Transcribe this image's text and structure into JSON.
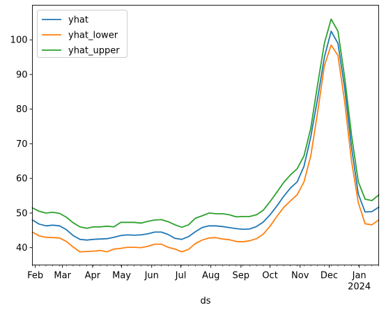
{
  "chart_data": {
    "type": "line",
    "title": "",
    "xlabel": "ds",
    "ylabel": "",
    "xlim": [
      "2023-01-29",
      "2024-01-21"
    ],
    "ylim": [
      35,
      110
    ],
    "grid": false,
    "legend_position": "top-left",
    "x_ticks": [
      {
        "date": "2023-02-01",
        "label": "Feb"
      },
      {
        "date": "2023-03-01",
        "label": "Mar"
      },
      {
        "date": "2023-04-01",
        "label": "Apr"
      },
      {
        "date": "2023-05-01",
        "label": "May"
      },
      {
        "date": "2023-06-01",
        "label": "Jun"
      },
      {
        "date": "2023-07-01",
        "label": "Jul"
      },
      {
        "date": "2023-08-01",
        "label": "Aug"
      },
      {
        "date": "2023-09-01",
        "label": "Sep"
      },
      {
        "date": "2023-10-01",
        "label": "Oct"
      },
      {
        "date": "2023-11-01",
        "label": "Nov"
      },
      {
        "date": "2023-12-01",
        "label": "Dec"
      },
      {
        "date": "2024-01-01",
        "label": "Jan",
        "sublabel": "2024"
      }
    ],
    "y_ticks": [
      40,
      50,
      60,
      70,
      80,
      90,
      100
    ],
    "x": [
      "2023-01-29",
      "2023-02-05",
      "2023-02-12",
      "2023-02-19",
      "2023-02-26",
      "2023-03-05",
      "2023-03-12",
      "2023-03-19",
      "2023-03-26",
      "2023-04-02",
      "2023-04-09",
      "2023-04-16",
      "2023-04-23",
      "2023-04-30",
      "2023-05-07",
      "2023-05-14",
      "2023-05-21",
      "2023-05-28",
      "2023-06-04",
      "2023-06-11",
      "2023-06-18",
      "2023-06-25",
      "2023-07-02",
      "2023-07-09",
      "2023-07-16",
      "2023-07-23",
      "2023-07-30",
      "2023-08-06",
      "2023-08-13",
      "2023-08-20",
      "2023-08-27",
      "2023-09-03",
      "2023-09-10",
      "2023-09-17",
      "2023-09-24",
      "2023-10-01",
      "2023-10-08",
      "2023-10-15",
      "2023-10-22",
      "2023-10-29",
      "2023-11-05",
      "2023-11-12",
      "2023-11-19",
      "2023-11-26",
      "2023-12-03",
      "2023-12-10",
      "2023-12-17",
      "2023-12-24",
      "2023-12-31",
      "2024-01-07",
      "2024-01-14",
      "2024-01-21"
    ],
    "series": [
      {
        "name": "yhat",
        "color": "#1f77b4",
        "values": [
          48.0,
          46.8,
          46.3,
          46.5,
          46.3,
          45.2,
          43.5,
          42.4,
          42.2,
          42.4,
          42.5,
          42.6,
          43.0,
          43.5,
          43.7,
          43.6,
          43.7,
          44.0,
          44.5,
          44.5,
          43.8,
          42.7,
          42.4,
          43.2,
          44.6,
          45.8,
          46.3,
          46.3,
          46.1,
          45.8,
          45.5,
          45.3,
          45.4,
          46.1,
          47.4,
          49.5,
          52.0,
          54.8,
          57.2,
          59.0,
          63.5,
          72.0,
          83.0,
          95.0,
          102.5,
          99.0,
          86.0,
          69.0,
          55.5,
          50.3,
          50.4,
          51.7
        ]
      },
      {
        "name": "yhat_lower",
        "color": "#ff7f0e",
        "values": [
          44.5,
          43.4,
          43.0,
          42.9,
          42.8,
          41.8,
          40.2,
          38.8,
          38.9,
          39.0,
          39.2,
          38.8,
          39.6,
          39.8,
          40.1,
          40.1,
          40.0,
          40.4,
          41.0,
          41.0,
          40.1,
          39.6,
          38.8,
          39.5,
          41.2,
          42.2,
          42.8,
          42.9,
          42.5,
          42.3,
          41.8,
          41.7,
          42.0,
          42.6,
          43.9,
          46.2,
          49.0,
          51.6,
          53.5,
          55.3,
          59.0,
          66.5,
          79.0,
          92.5,
          98.5,
          95.5,
          82.0,
          65.0,
          53.0,
          46.9,
          46.6,
          48.0
        ]
      },
      {
        "name": "yhat_upper",
        "color": "#2ca02c",
        "values": [
          51.5,
          50.5,
          50.0,
          50.2,
          49.9,
          48.8,
          47.2,
          46.0,
          45.6,
          46.0,
          46.0,
          46.2,
          46.0,
          47.3,
          47.3,
          47.3,
          47.1,
          47.6,
          48.0,
          48.1,
          47.5,
          46.6,
          45.9,
          46.6,
          48.5,
          49.2,
          50.0,
          49.8,
          49.8,
          49.5,
          48.9,
          49.0,
          49.0,
          49.5,
          50.8,
          53.3,
          56.0,
          58.8,
          61.0,
          62.8,
          66.5,
          74.5,
          87.0,
          99.0,
          106.0,
          102.5,
          89.0,
          72.5,
          59.0,
          54.0,
          53.6,
          55.2
        ]
      }
    ]
  }
}
